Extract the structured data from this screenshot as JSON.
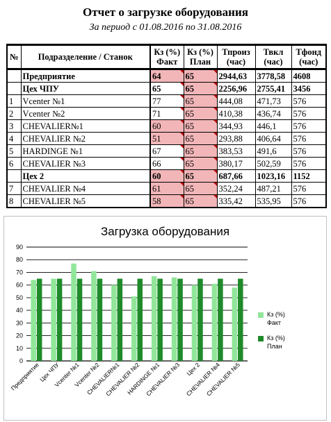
{
  "header": {
    "title": "Отчет о загрузке оборудования",
    "period": "За период с 01.08.2016 по 31.08.2016"
  },
  "table": {
    "columns": [
      "№",
      "Подразделение / Станок",
      "Кз (%) Факт",
      "Кз (%) План",
      "Тпроиз (час)",
      "Твкл (час)",
      "Тфонд (час)"
    ],
    "rows": [
      {
        "num": "",
        "name": "Предприятие",
        "fact": "64",
        "plan": "65",
        "tproiz": "2944,63",
        "tvkl": "3778,58",
        "tfond": "4608",
        "bold": true,
        "fact_pink": true,
        "plan_pink": true
      },
      {
        "num": "",
        "name": "Цех ЧПУ",
        "fact": "65",
        "plan": "65",
        "tproiz": "2256,96",
        "tvkl": "2755,41",
        "tfond": "3456",
        "bold": true,
        "fact_pink": false,
        "plan_pink": true
      },
      {
        "num": "1",
        "name": "Vcenter №1",
        "fact": "77",
        "plan": "65",
        "tproiz": "444,08",
        "tvkl": "471,73",
        "tfond": "576",
        "bold": false,
        "fact_pink": false,
        "plan_pink": true
      },
      {
        "num": "2",
        "name": "Vcenter №2",
        "fact": "71",
        "plan": "65",
        "tproiz": "410,38",
        "tvkl": "436,74",
        "tfond": "576",
        "bold": false,
        "fact_pink": false,
        "plan_pink": true
      },
      {
        "num": "3",
        "name": "CHEVALIER№1",
        "fact": "60",
        "plan": "65",
        "tproiz": "344,93",
        "tvkl": "446,1",
        "tfond": "576",
        "bold": false,
        "fact_pink": true,
        "plan_pink": true
      },
      {
        "num": "4",
        "name": "CHEVALIER №2",
        "fact": "51",
        "plan": "65",
        "tproiz": "293,88",
        "tvkl": "406,64",
        "tfond": "576",
        "bold": false,
        "fact_pink": true,
        "plan_pink": true
      },
      {
        "num": "5",
        "name": "HARDINGE №1",
        "fact": "67",
        "plan": "65",
        "tproiz": "383,53",
        "tvkl": "491,6",
        "tfond": "576",
        "bold": false,
        "fact_pink": false,
        "plan_pink": true
      },
      {
        "num": "6",
        "name": "CHEVALIER №3",
        "fact": "66",
        "plan": "65",
        "tproiz": "380,17",
        "tvkl": "502,59",
        "tfond": "576",
        "bold": false,
        "fact_pink": false,
        "plan_pink": true
      },
      {
        "num": "",
        "name": "Цех 2",
        "fact": "60",
        "plan": "65",
        "tproiz": "687,66",
        "tvkl": "1023,16",
        "tfond": "1152",
        "bold": true,
        "fact_pink": true,
        "plan_pink": true
      },
      {
        "num": "7",
        "name": "CHEVALIER  №4",
        "fact": "61",
        "plan": "65",
        "tproiz": "352,24",
        "tvkl": "487,21",
        "tfond": "576",
        "bold": false,
        "fact_pink": true,
        "plan_pink": true
      },
      {
        "num": "8",
        "name": "CHEVALIER №5",
        "fact": "58",
        "plan": "65",
        "tproiz": "335,42",
        "tvkl": "535,95",
        "tfond": "576",
        "bold": false,
        "fact_pink": true,
        "plan_pink": true
      }
    ]
  },
  "colors": {
    "fact": "#92e69a",
    "plan": "#1f8a2a",
    "pink": "#f2b6b8",
    "grid": "#000000"
  },
  "chart_data": {
    "type": "bar",
    "title": "Загрузка оборудования",
    "categories": [
      "Предприятие",
      "Цех ЧПУ",
      "Vcenter №1",
      "Vcenter №2",
      "CHEVALIER№1",
      "CHEVALIER №2",
      "HARDINGE №1",
      "CHEVALIER №3",
      "Цех 2",
      "CHEVALIER  №4",
      "CHEVALIER №5"
    ],
    "series": [
      {
        "name": "Кз (%) Факт",
        "values": [
          64,
          65,
          77,
          71,
          60,
          51,
          67,
          66,
          60,
          61,
          58
        ]
      },
      {
        "name": "Кз (%) План",
        "values": [
          65,
          65,
          65,
          65,
          65,
          65,
          65,
          65,
          65,
          65,
          65
        ]
      }
    ],
    "ylim": [
      0,
      90
    ],
    "yticks": [
      0,
      10,
      20,
      30,
      40,
      50,
      60,
      70,
      80,
      90
    ],
    "grid": true,
    "legend": "right"
  }
}
